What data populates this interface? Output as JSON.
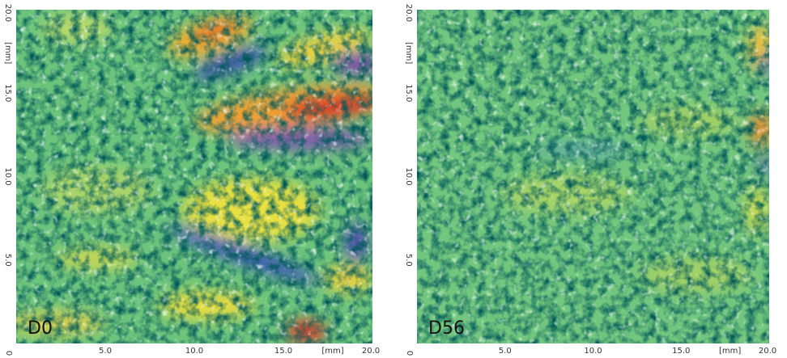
{
  "panels": [
    {
      "label": "D0",
      "x_ticks": [
        "0",
        "5.0",
        "10.0",
        "15.0",
        "20.0"
      ],
      "x_unit": "[mm]",
      "y_ticks": [
        "5.0",
        "10.0",
        "15.0",
        "20.0"
      ],
      "y_unit": "[mm]"
    },
    {
      "label": "D56",
      "x_ticks": [
        "0",
        "5.0",
        "10.0",
        "15.0",
        "20.0"
      ],
      "x_unit": "[mm]",
      "y_ticks": [
        "5.0",
        "10.0",
        "15.0",
        "20.0"
      ],
      "y_unit": "[mm]"
    }
  ]
}
